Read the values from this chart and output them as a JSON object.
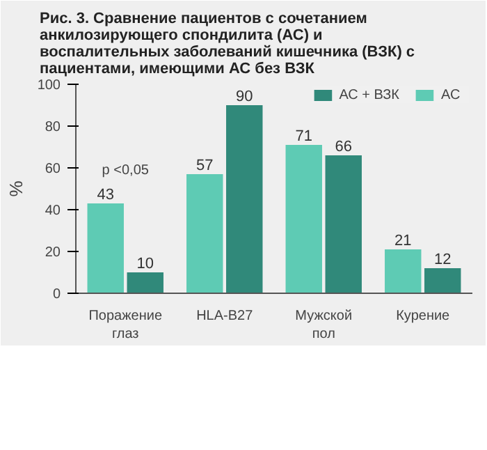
{
  "chart_data": {
    "type": "bar",
    "title": "Рис. 3. Сравнение пациентов с сочетанием анкилозирующего спондилита (АС) и воспалительных заболеваний кишечника (ВЗК) с пациентами, имеющими АС без ВЗК",
    "ylabel": "%",
    "categories": [
      "Поражение глаз",
      "HLA-B27",
      "Мужской пол",
      "Курение"
    ],
    "series": [
      {
        "name": "АС",
        "color": "#5ecbb4",
        "values": [
          43,
          57,
          71,
          21
        ]
      },
      {
        "name": "АС + ВЗК",
        "color": "#30897a",
        "values": [
          10,
          90,
          66,
          12
        ]
      }
    ],
    "ylim": [
      0,
      100
    ],
    "yticks": [
      0,
      20,
      40,
      60,
      80,
      100
    ],
    "data_labels": true,
    "grid": false,
    "legend": "top right",
    "annotations": [
      "p <0,05"
    ]
  }
}
